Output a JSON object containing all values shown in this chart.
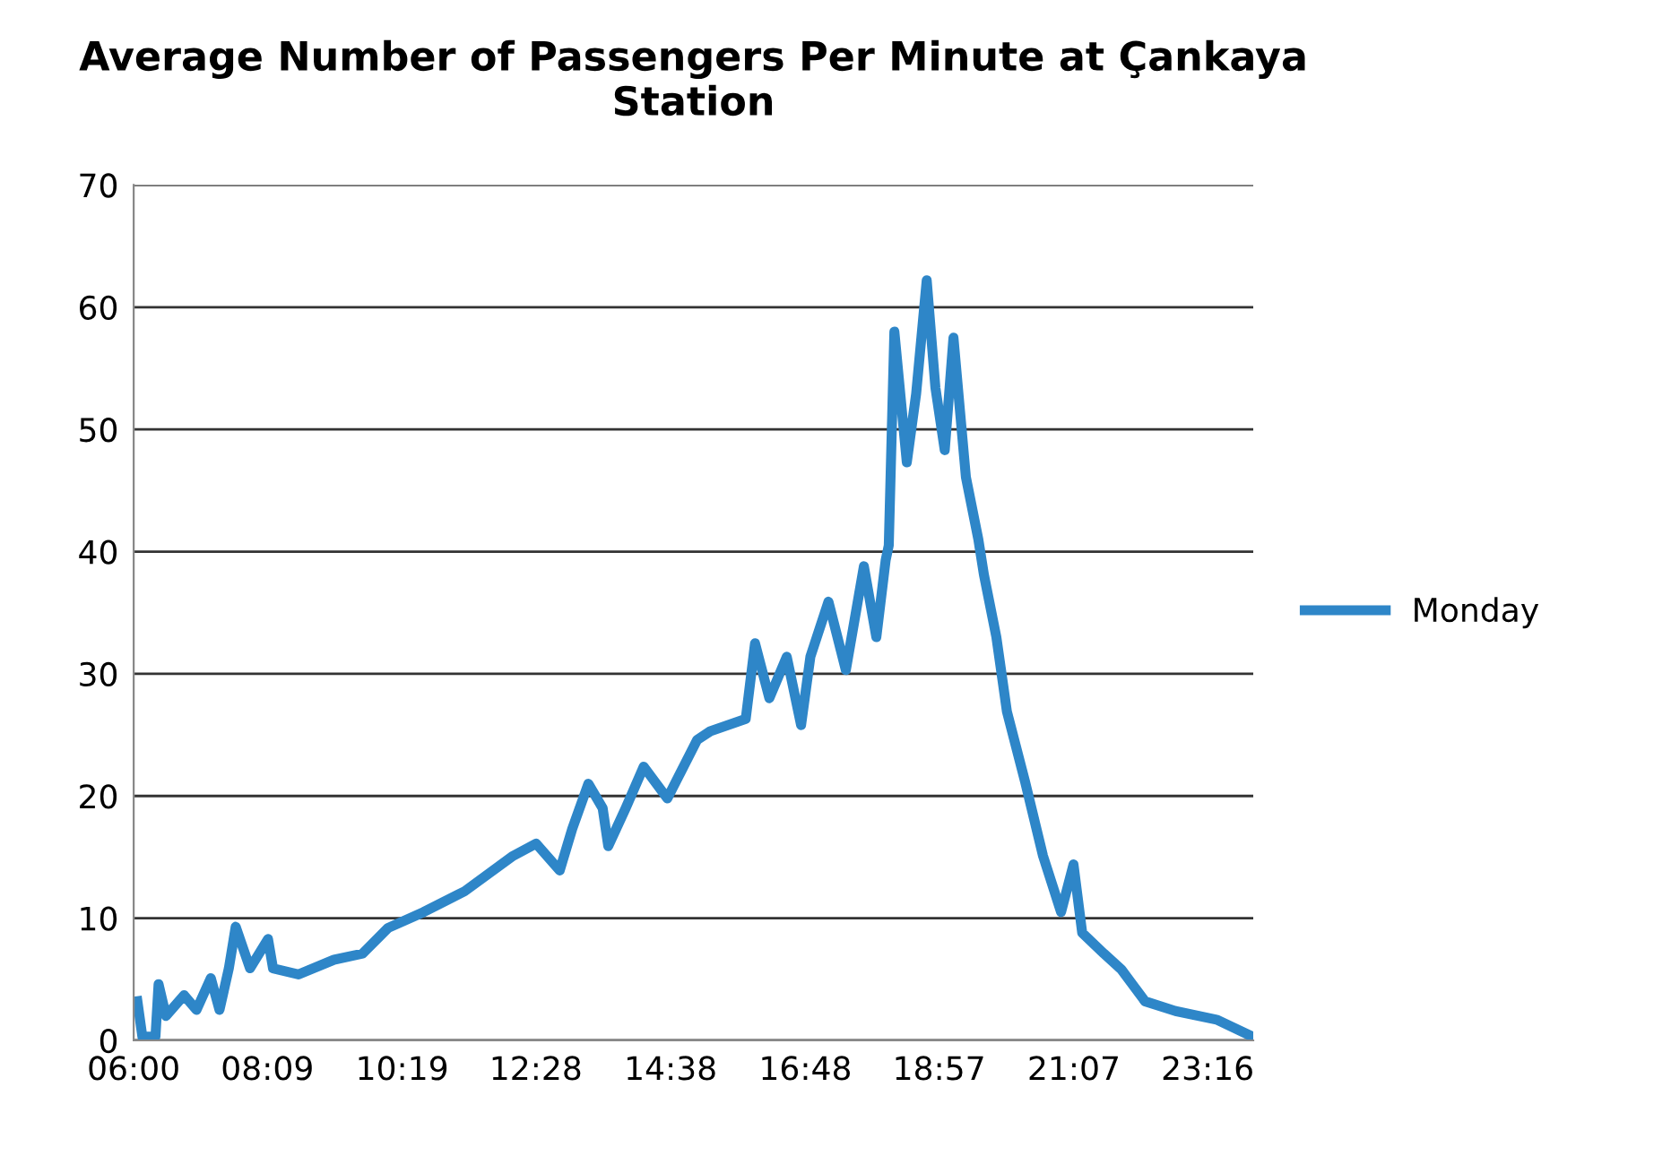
{
  "chart_data": {
    "type": "line",
    "title": "Average Number of Passengers Per Minute at Çankaya\nStation",
    "x": [
      6.06,
      6.14,
      6.35,
      6.4,
      6.52,
      6.81,
      7.01,
      7.24,
      7.38,
      7.53,
      7.64,
      7.87,
      8.16,
      8.24,
      8.65,
      9.22,
      9.68,
      10.09,
      10.66,
      11.32,
      12.1,
      12.47,
      12.85,
      13.05,
      13.31,
      13.54,
      13.63,
      13.91,
      14.2,
      14.58,
      15.06,
      15.27,
      15.84,
      15.99,
      16.22,
      16.5,
      16.73,
      16.88,
      17.17,
      17.45,
      17.74,
      17.94,
      18.09,
      18.14,
      18.23,
      18.43,
      18.58,
      18.75,
      18.89,
      19.04,
      19.18,
      19.38,
      19.58,
      19.67,
      19.87,
      20.04,
      20.33,
      20.62,
      20.91,
      21.11,
      21.25,
      21.6,
      21.88,
      22.26,
      22.75,
      23.41,
      23.99
    ],
    "series": [
      {
        "name": "Monday",
        "color": "#2e86c8",
        "values": [
          3.2,
          0.3,
          0.3,
          4.6,
          2,
          3.7,
          2.5,
          5.1,
          2.5,
          5.9,
          9.3,
          5.9,
          8.3,
          5.9,
          5.4,
          6.6,
          7.1,
          9.2,
          10.5,
          12.2,
          15.1,
          16.1,
          13.9,
          17.3,
          21,
          19,
          15.9,
          19,
          22.4,
          19.8,
          24.6,
          25.3,
          26.3,
          32.5,
          28,
          31.4,
          25.8,
          31.4,
          35.9,
          30.3,
          38.8,
          33,
          39.3,
          40.5,
          58,
          47.3,
          52.9,
          62.2,
          53.4,
          48.3,
          57.5,
          46.1,
          41,
          38.1,
          33,
          26.9,
          21.2,
          15.1,
          10.5,
          14.4,
          8.8,
          7.1,
          5.8,
          3.2,
          2.4,
          1.7,
          0.3
        ]
      }
    ],
    "xlim": [
      6,
      24
    ],
    "xticks": [
      {
        "value": 6,
        "label": "06:00"
      },
      {
        "value": 8.15,
        "label": "08:09"
      },
      {
        "value": 10.3167,
        "label": "10:19"
      },
      {
        "value": 12.4667,
        "label": "12:28"
      },
      {
        "value": 14.6333,
        "label": "14:38"
      },
      {
        "value": 16.8,
        "label": "16:48"
      },
      {
        "value": 18.95,
        "label": "18:57"
      },
      {
        "value": 21.1167,
        "label": "21:07"
      },
      {
        "value": 23.2667,
        "label": "23:16"
      }
    ],
    "ylim": [
      0,
      70
    ],
    "yticks": [
      0,
      10,
      20,
      30,
      40,
      50,
      60,
      70
    ],
    "grid": "y",
    "legend": "right",
    "marker": "none",
    "line_style": "solid"
  }
}
